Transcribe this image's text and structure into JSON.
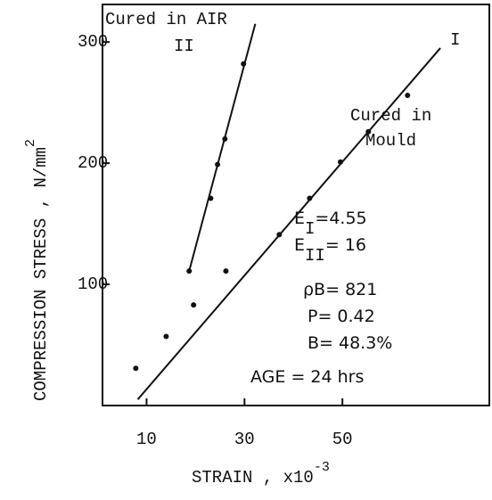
{
  "chart_data": {
    "type": "scatter",
    "xlabel": "STRAIN , x10",
    "xlabel_sup": "-3",
    "ylabel": "COMPRESSION STRESS , N/mm",
    "ylabel_sup": "2",
    "xlim": [
      1,
      80
    ],
    "ylim": [
      0,
      331
    ],
    "xticks": [
      10,
      30,
      50
    ],
    "yticks": [
      100,
      200,
      300
    ],
    "series": [
      {
        "name": "Cured in AIR",
        "label": "II",
        "color": "#111",
        "x": [
          18.7,
          23.1,
          24.5,
          26,
          29.8
        ],
        "values": [
          111,
          171,
          199,
          220,
          282
        ],
        "fit": {
          "x": [
            18.7,
            32.2
          ],
          "values": [
            111,
            315
          ]
        }
      },
      {
        "name": "Cured in",
        "name2": "Mould",
        "label": "I",
        "color": "#111",
        "x": [
          7.8,
          14,
          19.6,
          26.2,
          37.1,
          43.3,
          49.6,
          55.3,
          63.3
        ],
        "values": [
          30.7,
          57,
          83,
          111,
          141,
          171,
          201,
          226,
          256
        ],
        "fit": {
          "x": [
            8.2,
            70
          ],
          "values": [
            5,
            295
          ]
        }
      }
    ],
    "annotations": [
      {
        "text": "E",
        "sub": "I",
        "rest": "=4.55"
      },
      {
        "text": "E",
        "sub": "II",
        "rest": "= 16"
      },
      {
        "text": "ρB",
        "rest": "= 821"
      },
      {
        "text": "P",
        "rest": "= 0.42"
      },
      {
        "text": "B",
        "rest": "= 48.3%"
      },
      {
        "text": "AGE",
        "rest": "  = 24 hrs"
      }
    ]
  }
}
